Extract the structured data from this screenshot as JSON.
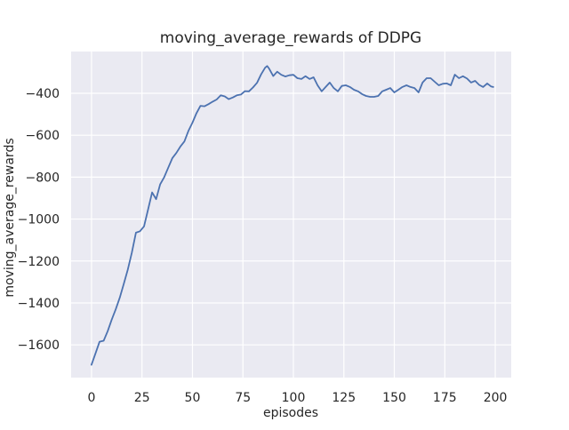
{
  "chart_data": {
    "type": "line",
    "title": "moving_average_rewards of DDPG",
    "xlabel": "episodes",
    "ylabel": "moving_average_rewards",
    "x_ticks": [
      0,
      25,
      50,
      75,
      100,
      125,
      150,
      175,
      200
    ],
    "x_tick_labels": [
      "0",
      "25",
      "50",
      "75",
      "100",
      "125",
      "150",
      "175",
      "200"
    ],
    "y_ticks": [
      -400,
      -600,
      -800,
      -1000,
      -1200,
      -1400,
      -1600
    ],
    "y_tick_labels": [
      "−400",
      "−600",
      "−800",
      "−1000",
      "−1200",
      "−1400",
      "−1600"
    ],
    "xlim": [
      -10.1,
      207.9
    ],
    "ylim": [
      -1756,
      -201
    ],
    "grid": true,
    "legend_position": "none",
    "colors": {
      "line": "#4c72b0",
      "plot_bg": "#eaeaf2",
      "grid": "#ffffff",
      "text": "#262626",
      "figure_bg": "#ffffff"
    },
    "series": [
      {
        "name": "moving_average_rewards",
        "x": [
          0,
          2,
          4,
          6,
          8,
          10,
          12,
          14,
          16,
          18,
          20,
          22,
          24,
          26,
          28,
          30,
          32,
          34,
          36,
          38,
          40,
          42,
          44,
          46,
          48,
          50,
          52,
          54,
          56,
          58,
          60,
          62,
          64,
          66,
          68,
          70,
          72,
          74,
          76,
          78,
          80,
          82,
          84,
          86,
          87,
          88,
          90,
          92,
          94,
          96,
          98,
          100,
          102,
          104,
          106,
          108,
          110,
          112,
          114,
          116,
          118,
          120,
          122,
          124,
          126,
          128,
          130,
          132,
          134,
          136,
          138,
          140,
          142,
          144,
          146,
          148,
          150,
          152,
          154,
          156,
          158,
          160,
          162,
          164,
          166,
          168,
          170,
          172,
          174,
          176,
          178,
          180,
          182,
          184,
          186,
          188,
          190,
          192,
          194,
          196,
          198,
          199
        ],
        "y": [
          -1695,
          -1640,
          -1585,
          -1580,
          -1535,
          -1480,
          -1430,
          -1375,
          -1308,
          -1240,
          -1160,
          -1065,
          -1058,
          -1035,
          -955,
          -873,
          -905,
          -835,
          -800,
          -755,
          -710,
          -685,
          -655,
          -630,
          -580,
          -540,
          -495,
          -460,
          -462,
          -452,
          -440,
          -430,
          -410,
          -415,
          -428,
          -420,
          -410,
          -406,
          -390,
          -391,
          -372,
          -350,
          -310,
          -278,
          -270,
          -283,
          -318,
          -297,
          -312,
          -320,
          -314,
          -312,
          -328,
          -332,
          -319,
          -332,
          -324,
          -362,
          -391,
          -370,
          -349,
          -375,
          -391,
          -365,
          -362,
          -370,
          -383,
          -391,
          -404,
          -413,
          -417,
          -417,
          -413,
          -391,
          -383,
          -375,
          -396,
          -383,
          -370,
          -362,
          -370,
          -375,
          -396,
          -349,
          -328,
          -328,
          -345,
          -362,
          -355,
          -353,
          -362,
          -311,
          -328,
          -319,
          -330,
          -349,
          -341,
          -360,
          -370,
          -353,
          -368,
          -370
        ]
      }
    ]
  }
}
